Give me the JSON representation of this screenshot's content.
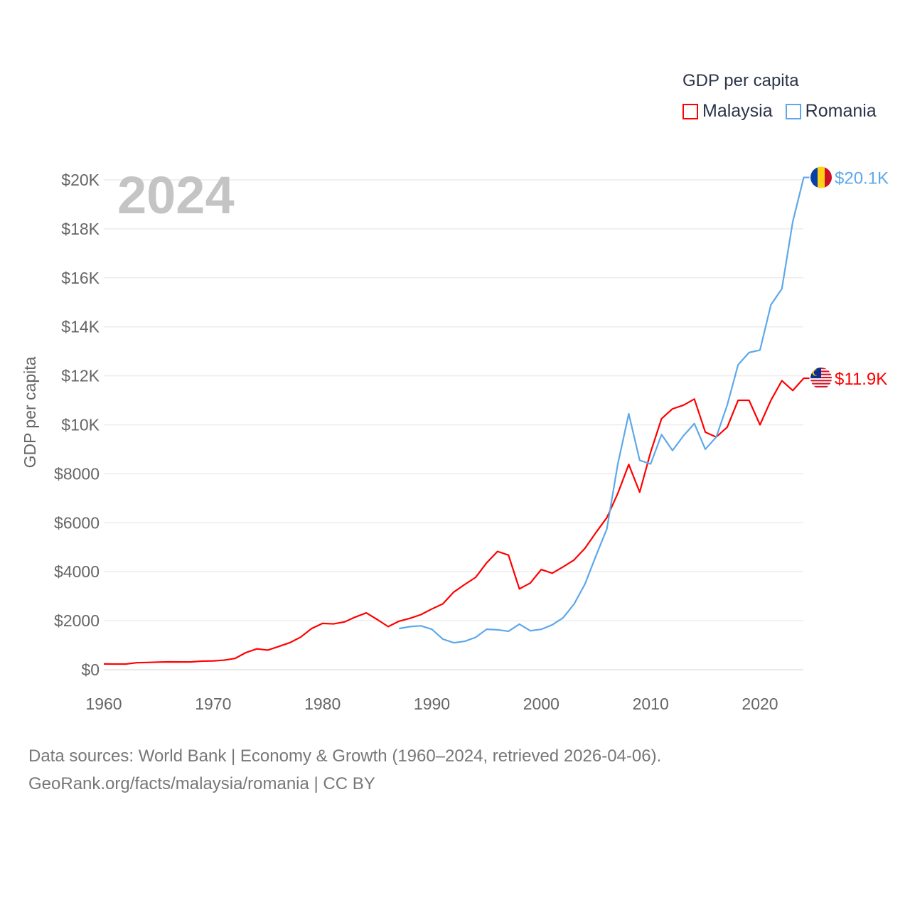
{
  "chart_data": {
    "type": "line",
    "title": "GDP per capita",
    "year_watermark": "2024",
    "xlabel": "",
    "ylabel": "GDP per capita",
    "xlim": [
      1960,
      2024
    ],
    "ylim": [
      0,
      20000
    ],
    "x_ticks": [
      "1960",
      "1970",
      "1980",
      "1990",
      "2000",
      "2010",
      "2020"
    ],
    "y_ticks": [
      "$0",
      "$2000",
      "$4000",
      "$6000",
      "$8000",
      "$10K",
      "$12K",
      "$14K",
      "$16K",
      "$18K",
      "$20K"
    ],
    "grid": true,
    "legend_position": "top-right",
    "series": [
      {
        "name": "Malaysia",
        "color": "#ff0000",
        "end_label": "$11.9K",
        "start_year": 1960,
        "values": [
          235,
          230,
          230,
          285,
          295,
          310,
          320,
          315,
          320,
          350,
          360,
          390,
          460,
          700,
          850,
          800,
          950,
          1100,
          1330,
          1680,
          1890,
          1870,
          1950,
          2150,
          2320,
          2050,
          1760,
          1980,
          2100,
          2250,
          2480,
          2690,
          3170,
          3480,
          3770,
          4360,
          4830,
          4680,
          3300,
          3540,
          4090,
          3940,
          4200,
          4480,
          4960,
          5600,
          6210,
          7200,
          8380,
          7250,
          8880,
          10250,
          10650,
          10800,
          11050,
          9700,
          9500,
          9900,
          11000,
          11000,
          10000,
          11000,
          11800,
          11400,
          11900
        ]
      },
      {
        "name": "Romania",
        "color": "#5ea8ea",
        "end_label": "$20.1K",
        "start_year": 1987,
        "values": [
          1680,
          1760,
          1790,
          1650,
          1250,
          1100,
          1160,
          1320,
          1650,
          1630,
          1570,
          1860,
          1590,
          1650,
          1830,
          2120,
          2680,
          3500,
          4650,
          5750,
          8400,
          10450,
          8550,
          8400,
          9600,
          8950,
          9550,
          10050,
          9000,
          9500,
          10800,
          12450,
          12950,
          13050,
          14900,
          15550,
          18300,
          20100
        ]
      }
    ]
  },
  "footer": {
    "line1": "Data sources: World Bank | Economy & Growth (1960–2024, retrieved 2026-04-06).",
    "line2": "GeoRank.org/facts/malaysia/romania | CC BY"
  }
}
